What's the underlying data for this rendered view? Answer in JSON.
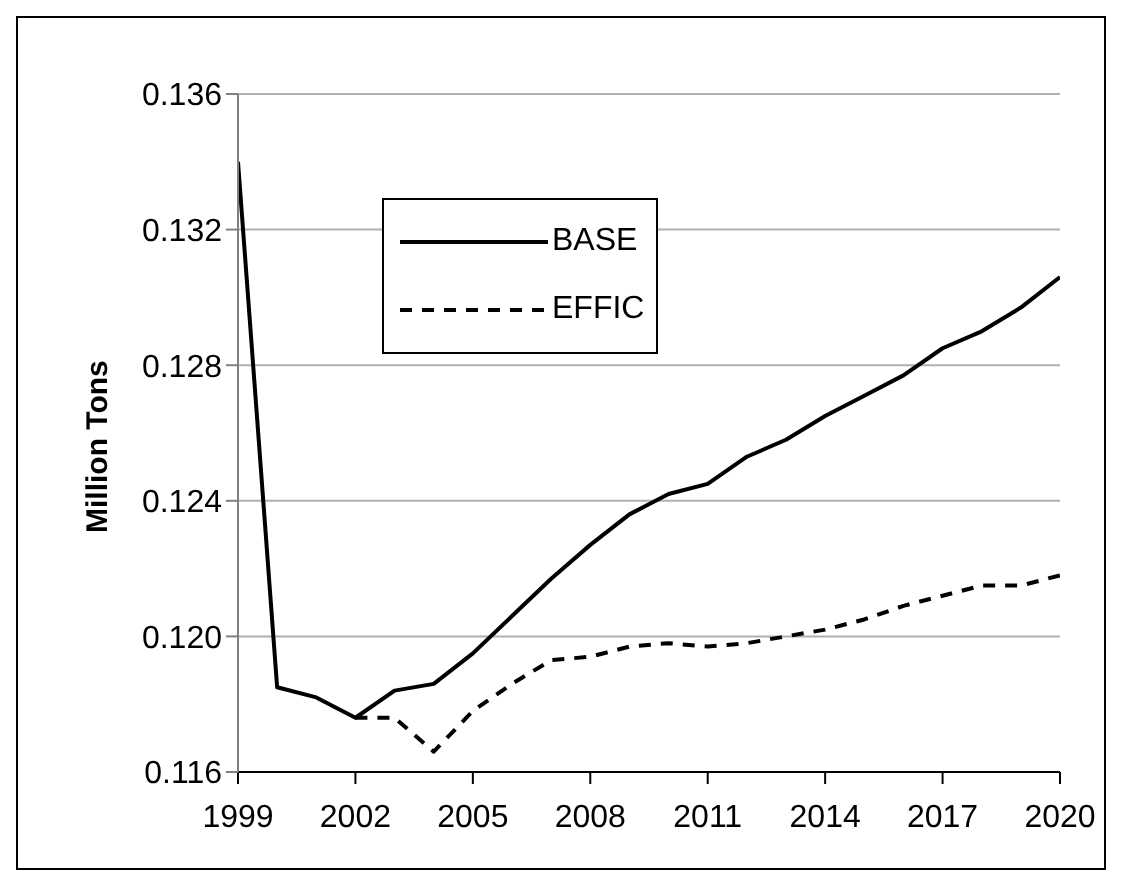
{
  "chart_data": {
    "type": "line",
    "ylabel": "Million Tons",
    "x": [
      1999,
      2000,
      2001,
      2002,
      2003,
      2004,
      2005,
      2006,
      2007,
      2008,
      2009,
      2010,
      2011,
      2012,
      2013,
      2014,
      2015,
      2016,
      2017,
      2018,
      2019,
      2020
    ],
    "series": [
      {
        "name": "BASE",
        "color": "#000000",
        "line_style": "solid",
        "values": [
          0.134,
          0.1185,
          0.1182,
          0.1176,
          0.1184,
          0.1186,
          0.1195,
          0.1206,
          0.1217,
          0.1227,
          0.1236,
          0.1242,
          0.1245,
          0.1253,
          0.1258,
          0.1265,
          0.1271,
          0.1277,
          0.1285,
          0.129,
          0.1297,
          0.1306
        ]
      },
      {
        "name": "EFFIC",
        "color": "#000000",
        "line_style": "dashed",
        "values": [
          null,
          null,
          null,
          0.1176,
          0.1176,
          0.1166,
          0.1178,
          0.1186,
          0.1193,
          0.1194,
          0.1197,
          0.1198,
          0.1197,
          0.1198,
          0.12,
          0.1202,
          0.1205,
          0.1209,
          0.1212,
          0.1215,
          0.1215,
          0.1218
        ]
      }
    ],
    "xlim": [
      1999,
      2020
    ],
    "xticks": [
      1999,
      2002,
      2005,
      2008,
      2011,
      2014,
      2017,
      2020
    ],
    "ylim": [
      0.116,
      0.136
    ],
    "yticks": [
      0.116,
      {
        "value": 0.12,
        "label": "0.120"
      },
      0.124,
      0.128,
      0.132,
      0.136
    ],
    "grid": "y",
    "legend": "top left",
    "marker": "none"
  }
}
